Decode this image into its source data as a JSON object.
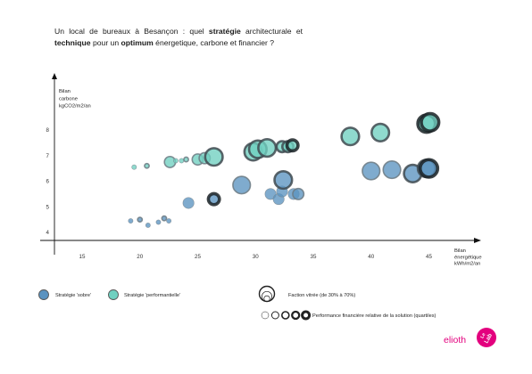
{
  "title": {
    "parts": [
      {
        "text": "Un local de bureaux à Besançon :  quel ",
        "bold": false
      },
      {
        "text": "stratégie",
        "bold": true
      },
      {
        "text": " architecturale et ",
        "bold": false
      },
      {
        "text": "technique",
        "bold": true
      },
      {
        "text": " pour un ",
        "bold": false
      },
      {
        "text": "optimum",
        "bold": true
      },
      {
        "text": " énergetique, carbone et financier ?",
        "bold": false
      }
    ]
  },
  "chart_data": {
    "type": "scatter",
    "title": "Un local de bureaux à Besançon :  quel stratégie architecturale et technique pour un optimum énergetique, carbone et financier ?",
    "xlabel": [
      "Bilan",
      "énergétique",
      "kWh/m2/an"
    ],
    "ylabel": [
      "Bilan",
      "carbone",
      "kgCO2/m2/an"
    ],
    "xlim": [
      12.5,
      46.5
    ],
    "ylim": [
      3.5,
      8.8
    ],
    "xticks": [
      15,
      20,
      25,
      30,
      35,
      40,
      45
    ],
    "yticks": [
      4,
      5,
      6,
      7,
      8
    ],
    "size_encoding": "Faction vitrée (de 30% à 70%)",
    "edge_encoding": "Performance financière relative de la solution (quartiles)",
    "series": [
      {
        "name": "Stratégie 'sobre'",
        "color": "#5b93c0",
        "points": [
          {
            "x": 19.2,
            "y": 4.45,
            "size": 1,
            "quartile": 1
          },
          {
            "x": 20.0,
            "y": 4.5,
            "size": 1,
            "quartile": 2
          },
          {
            "x": 20.7,
            "y": 4.28,
            "size": 1,
            "quartile": 1
          },
          {
            "x": 21.6,
            "y": 4.4,
            "size": 1,
            "quartile": 1
          },
          {
            "x": 22.1,
            "y": 4.55,
            "size": 1,
            "quartile": 2
          },
          {
            "x": 22.5,
            "y": 4.45,
            "size": 1,
            "quartile": 1
          },
          {
            "x": 24.2,
            "y": 5.15,
            "size": 2,
            "quartile": 1
          },
          {
            "x": 26.4,
            "y": 5.3,
            "size": 2,
            "quartile": 4
          },
          {
            "x": 28.8,
            "y": 5.85,
            "size": 3,
            "quartile": 2
          },
          {
            "x": 31.3,
            "y": 5.5,
            "size": 2,
            "quartile": 1
          },
          {
            "x": 32.0,
            "y": 5.3,
            "size": 2,
            "quartile": 1
          },
          {
            "x": 32.3,
            "y": 5.6,
            "size": 2,
            "quartile": 1
          },
          {
            "x": 32.4,
            "y": 6.05,
            "size": 3,
            "quartile": 3
          },
          {
            "x": 33.3,
            "y": 5.5,
            "size": 2,
            "quartile": 1
          },
          {
            "x": 33.7,
            "y": 5.5,
            "size": 2,
            "quartile": 2
          },
          {
            "x": 40.0,
            "y": 6.4,
            "size": 3,
            "quartile": 2
          },
          {
            "x": 41.8,
            "y": 6.45,
            "size": 3,
            "quartile": 2
          },
          {
            "x": 43.6,
            "y": 6.3,
            "size": 3,
            "quartile": 3
          },
          {
            "x": 44.8,
            "y": 6.5,
            "size": 3,
            "quartile": 3
          },
          {
            "x": 45.0,
            "y": 6.5,
            "size": 3,
            "quartile": 4
          }
        ]
      },
      {
        "name": "Stratégie 'performantielle'",
        "color": "#6fd0c0",
        "points": [
          {
            "x": 19.5,
            "y": 6.55,
            "size": 1,
            "quartile": 1
          },
          {
            "x": 20.6,
            "y": 6.6,
            "size": 1,
            "quartile": 2
          },
          {
            "x": 22.6,
            "y": 6.75,
            "size": 2,
            "quartile": 2
          },
          {
            "x": 23.1,
            "y": 6.8,
            "size": 1,
            "quartile": 1
          },
          {
            "x": 23.6,
            "y": 6.8,
            "size": 1,
            "quartile": 1
          },
          {
            "x": 24.0,
            "y": 6.85,
            "size": 1,
            "quartile": 2
          },
          {
            "x": 25.0,
            "y": 6.85,
            "size": 2,
            "quartile": 2
          },
          {
            "x": 25.6,
            "y": 6.9,
            "size": 2,
            "quartile": 2
          },
          {
            "x": 26.4,
            "y": 6.95,
            "size": 3,
            "quartile": 3
          },
          {
            "x": 29.8,
            "y": 7.15,
            "size": 3,
            "quartile": 3
          },
          {
            "x": 30.2,
            "y": 7.25,
            "size": 3,
            "quartile": 3
          },
          {
            "x": 31.0,
            "y": 7.3,
            "size": 3,
            "quartile": 3
          },
          {
            "x": 32.3,
            "y": 7.35,
            "size": 2,
            "quartile": 3
          },
          {
            "x": 32.8,
            "y": 7.35,
            "size": 2,
            "quartile": 3
          },
          {
            "x": 33.2,
            "y": 7.4,
            "size": 2,
            "quartile": 4
          },
          {
            "x": 38.2,
            "y": 7.75,
            "size": 3,
            "quartile": 3
          },
          {
            "x": 40.8,
            "y": 7.9,
            "size": 3,
            "quartile": 3
          },
          {
            "x": 44.8,
            "y": 8.25,
            "size": 3,
            "quartile": 4
          },
          {
            "x": 45.1,
            "y": 8.3,
            "size": 3,
            "quartile": 4
          }
        ]
      }
    ],
    "grid": false,
    "legend": "bottom"
  },
  "legend": {
    "sobre_label": "Stratégie 'sobre'",
    "perf_label": "Stratégie 'performantielle'",
    "size_label": "Faction vitrée (de 30% à 70%)",
    "perf_fin_label": "Performance financière relative de la solution (quartiles)"
  },
  "logo": {
    "brand": "elioth",
    "badge_line1": "Le",
    "badge_line2": "Lab",
    "brand_color": "#e3007e"
  }
}
